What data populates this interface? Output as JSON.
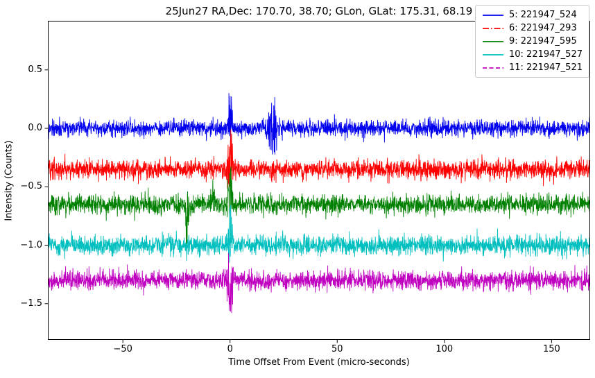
{
  "chart_data": {
    "type": "line",
    "title": "25Jun27 RA,Dec:  170.70,  38.70; GLon, GLat:  175.31,  68.19",
    "xlabel": "Time Offset From Event (micro-seconds)",
    "ylabel": "Intensity (Counts)",
    "xlim": [
      -85,
      168
    ],
    "ylim": [
      -1.81,
      0.92
    ],
    "grid": false,
    "legend_position": "upper right",
    "points_per_trace": 2600,
    "xticks": [
      {
        "value": -50,
        "label": "−50"
      },
      {
        "value": 0,
        "label": "0"
      },
      {
        "value": 50,
        "label": "50"
      },
      {
        "value": 100,
        "label": "100"
      },
      {
        "value": 150,
        "label": "150"
      }
    ],
    "yticks": [
      {
        "value": 0.5,
        "label": "0.5"
      },
      {
        "value": 0.0,
        "label": "0.0"
      },
      {
        "value": -0.5,
        "label": "−0.5"
      },
      {
        "value": -1.0,
        "label": "−1.0"
      },
      {
        "value": -1.5,
        "label": "−1.5"
      }
    ],
    "series": [
      {
        "label": "5: 221947_524",
        "color": "#0000ee",
        "linestyle": "solid",
        "baseline": 0.0,
        "noise_sigma": 0.035,
        "spikes": [
          {
            "t": 0,
            "up": 0.38,
            "down": -0.14,
            "width": 1.2
          },
          {
            "t": 20,
            "up": 0.36,
            "down": -0.33,
            "width": 1.9
          }
        ]
      },
      {
        "label": "6: 221947_293",
        "color": "#ff0000",
        "linestyle": "dashdot",
        "baseline": -0.35,
        "noise_sigma": 0.04,
        "spikes": [
          {
            "t": 0,
            "up": 0.4,
            "down": -0.22,
            "width": 1.6
          }
        ]
      },
      {
        "label": "9: 221947_595",
        "color": "#008000",
        "linestyle": "solid",
        "baseline": -0.65,
        "noise_sigma": 0.04,
        "spikes": [
          {
            "t": -20,
            "up": 0.08,
            "down": -0.42,
            "width": 0.9
          },
          {
            "t": -8,
            "up": 0.3,
            "down": -0.08,
            "width": 0.7
          },
          {
            "t": 0,
            "up": 0.34,
            "down": -0.12,
            "width": 1.3
          }
        ]
      },
      {
        "label": "10: 221947_527",
        "color": "#00bfbf",
        "linestyle": "solid",
        "baseline": -1.0,
        "noise_sigma": 0.04,
        "spikes": [
          {
            "t": 0,
            "up": 0.46,
            "down": -0.2,
            "width": 1.2
          }
        ]
      },
      {
        "label": "11: 221947_521",
        "color": "#bf00bf",
        "linestyle": "dashed",
        "baseline": -1.3,
        "noise_sigma": 0.038,
        "spikes": [
          {
            "t": 0,
            "up": 0.35,
            "down": -0.37,
            "width": 1.3
          }
        ]
      }
    ]
  }
}
